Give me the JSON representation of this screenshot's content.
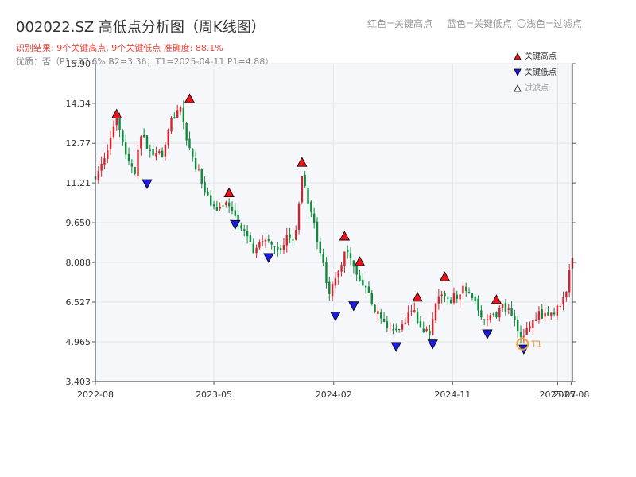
{
  "header": {
    "title": "002022.SZ 高低点分析图（周K线图）",
    "hint_red": "红色=关键高点",
    "hint_blue": "蓝色=关键低点",
    "hint_light": "〇浅色=过滤点",
    "result_line": "识别结果: 9个关键高点, 9个关键低点   准确度: 88.1%",
    "summary_line": "优质：否（P1=37.6%  B2=3.36；T1=2025-04-11 P1=4.88）"
  },
  "legend": {
    "high": "关键高点",
    "low": "关键低点",
    "filtered": "过滤点"
  },
  "colors": {
    "up": "#d6232b",
    "down": "#0e8a3a",
    "high_marker": "#e8131a",
    "low_marker": "#1a1ae0",
    "t1_marker": "#f0a030",
    "plot_bg": "#f5f7fa",
    "grid": "#e3e6ea"
  },
  "chart_data": {
    "type": "candlestick",
    "title": "002022.SZ 高低点分析图（周K线图）",
    "ylim": [
      3.403,
      15.9
    ],
    "y_ticks": [
      "3.403",
      "4.965",
      "6.527",
      "8.088",
      "9.650",
      "11.21",
      "12.77",
      "14.34",
      "15.90"
    ],
    "x_ticks": [
      {
        "label": "2022-08",
        "date": "2022-08-01"
      },
      {
        "label": "2023-05",
        "date": "2023-05-01"
      },
      {
        "label": "2024-02",
        "date": "2024-02-01"
      },
      {
        "label": "2024-11",
        "date": "2024-11-01"
      },
      {
        "label": "2025-07",
        "date": "2025-07-01"
      },
      {
        "label": "2025-08",
        "date": "2025-08-01"
      }
    ],
    "x_range": [
      "2022-08-01",
      "2025-08-04"
    ],
    "grid": true,
    "close_path": [
      [
        "2022-08-01",
        11.4
      ],
      [
        "2022-08-29",
        12.6
      ],
      [
        "2022-09-19",
        13.8
      ],
      [
        "2022-10-10",
        12.4
      ],
      [
        "2022-10-31",
        11.7
      ],
      [
        "2022-11-14",
        13.2
      ],
      [
        "2022-12-05",
        12.4
      ],
      [
        "2023-01-02",
        12.3
      ],
      [
        "2023-01-23",
        13.6
      ],
      [
        "2023-02-13",
        14.1
      ],
      [
        "2023-03-06",
        12.5
      ],
      [
        "2023-03-27",
        11.6
      ],
      [
        "2023-04-17",
        10.6
      ],
      [
        "2023-05-08",
        10.2
      ],
      [
        "2023-05-29",
        10.6
      ],
      [
        "2023-06-19",
        9.8
      ],
      [
        "2023-07-10",
        9.2
      ],
      [
        "2023-07-31",
        8.6
      ],
      [
        "2023-08-28",
        8.9
      ],
      [
        "2023-09-25",
        8.6
      ],
      [
        "2023-10-16",
        9.0
      ],
      [
        "2023-11-06",
        9.2
      ],
      [
        "2023-11-20",
        11.6
      ],
      [
        "2023-12-11",
        10.0
      ],
      [
        "2024-01-01",
        8.5
      ],
      [
        "2024-01-22",
        6.9
      ],
      [
        "2024-02-12",
        7.9
      ],
      [
        "2024-03-04",
        8.6
      ],
      [
        "2024-03-25",
        7.6
      ],
      [
        "2024-04-15",
        7.0
      ],
      [
        "2024-05-06",
        6.2
      ],
      [
        "2024-05-27",
        5.8
      ],
      [
        "2024-06-17",
        5.3
      ],
      [
        "2024-07-08",
        5.5
      ],
      [
        "2024-07-29",
        6.3
      ],
      [
        "2024-08-19",
        5.5
      ],
      [
        "2024-09-09",
        5.3
      ],
      [
        "2024-09-30",
        6.9
      ],
      [
        "2024-10-21",
        6.5
      ],
      [
        "2024-11-11",
        6.8
      ],
      [
        "2024-12-02",
        7.1
      ],
      [
        "2024-12-23",
        6.6
      ],
      [
        "2025-01-13",
        5.8
      ],
      [
        "2025-02-03",
        5.9
      ],
      [
        "2025-02-24",
        6.3
      ],
      [
        "2025-03-17",
        6.0
      ],
      [
        "2025-04-07",
        5.2
      ],
      [
        "2025-04-28",
        5.5
      ],
      [
        "2025-05-19",
        6.0
      ],
      [
        "2025-06-09",
        6.0
      ],
      [
        "2025-06-30",
        6.3
      ],
      [
        "2025-07-21",
        6.9
      ],
      [
        "2025-08-04",
        8.4
      ]
    ],
    "key_highs": [
      [
        "2022-09-19",
        13.7
      ],
      [
        "2023-03-06",
        14.3
      ],
      [
        "2023-06-05",
        10.6
      ],
      [
        "2023-11-20",
        11.8
      ],
      [
        "2024-02-26",
        8.9
      ],
      [
        "2024-04-01",
        7.9
      ],
      [
        "2024-08-12",
        6.5
      ],
      [
        "2024-10-14",
        7.3
      ],
      [
        "2025-02-10",
        6.4
      ]
    ],
    "key_lows": [
      [
        "2022-11-28",
        11.4
      ],
      [
        "2023-06-19",
        9.8
      ],
      [
        "2023-09-04",
        8.5
      ],
      [
        "2024-02-05",
        6.2
      ],
      [
        "2024-03-18",
        6.6
      ],
      [
        "2024-06-24",
        5.0
      ],
      [
        "2024-09-16",
        5.1
      ],
      [
        "2025-01-20",
        5.5
      ],
      [
        "2025-04-14",
        4.9
      ]
    ],
    "t1": {
      "label": "T1",
      "date": "2025-04-11",
      "value": 4.88
    }
  }
}
